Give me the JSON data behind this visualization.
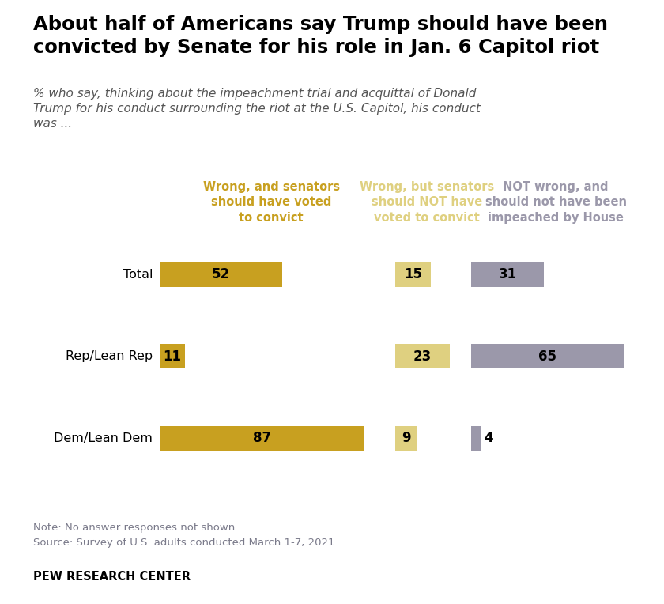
{
  "title": "About half of Americans say Trump should have been\nconvicted by Senate for his role in Jan. 6 Capitol riot",
  "subtitle": "% who say, thinking about the impeachment trial and acquittal of Donald\nTrump for his conduct surrounding the riot at the U.S. Capitol, his conduct\nwas ...",
  "categories": [
    "Total",
    "Rep/Lean Rep",
    "Dem/Lean Dem"
  ],
  "series": [
    {
      "name": "Wrong, and senators\nshould have voted\nto convict",
      "values": [
        52,
        11,
        87
      ],
      "color": "#c8a020",
      "xlim": 95
    },
    {
      "name": "Wrong, but senators\nshould NOT have\nvoted to convict",
      "values": [
        15,
        23,
        9
      ],
      "color": "#dfd080",
      "xlim": 27
    },
    {
      "name": "NOT wrong, and\nshould not have been\nimpeached by House",
      "values": [
        31,
        65,
        4
      ],
      "color": "#9b98aa",
      "xlim": 72
    }
  ],
  "note": "Note: No answer responses not shown.",
  "source": "Source: Survey of U.S. adults conducted March 1-7, 2021.",
  "footer": "PEW RESEARCH CENTER",
  "background_color": "#ffffff",
  "note_color": "#7a7a8a",
  "title_color": "#000000",
  "subtitle_color": "#555555"
}
